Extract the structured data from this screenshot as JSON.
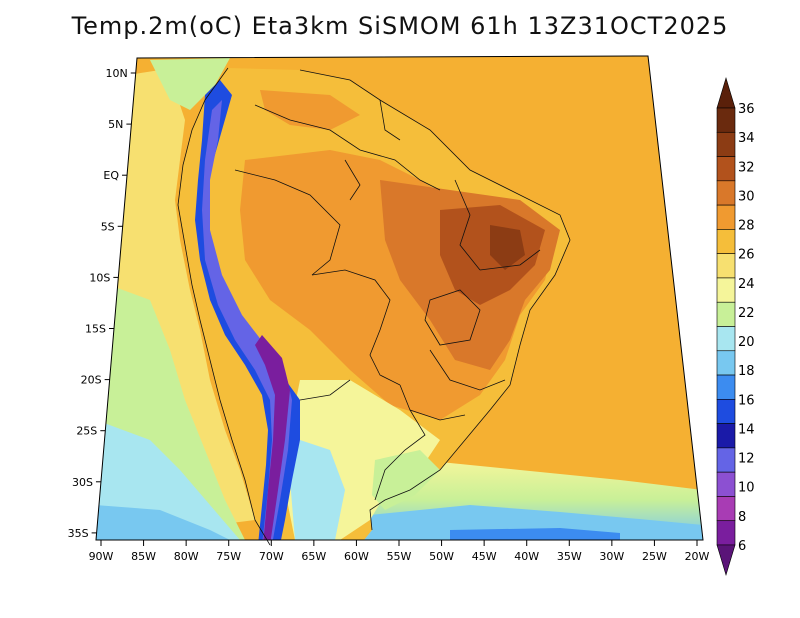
{
  "title": "Temp.2m(oC) Eta3km SiSMOM 61h 13Z31OCT2025",
  "map": {
    "lat_ticks": [
      "10N",
      "5N",
      "EQ",
      "5S",
      "10S",
      "15S",
      "20S",
      "25S",
      "30S",
      "35S"
    ],
    "lon_ticks": [
      "90W",
      "85W",
      "80W",
      "75W",
      "70W",
      "65W",
      "60W",
      "55W",
      "50W",
      "45W",
      "40W",
      "35W",
      "30W",
      "25W",
      "20W"
    ]
  },
  "colorbar": {
    "labels": [
      "36",
      "34",
      "32",
      "30",
      "28",
      "26",
      "24",
      "22",
      "20",
      "18",
      "16",
      "14",
      "12",
      "10",
      "8",
      "6"
    ],
    "colors": [
      "#6a2a0e",
      "#8c3c14",
      "#b2521c",
      "#d9782a",
      "#f09a30",
      "#f5be3a",
      "#f7e070",
      "#f5f59a",
      "#c8f098",
      "#a8e6f0",
      "#78c8f0",
      "#3c8cf0",
      "#1e4ce0",
      "#1a1aa8",
      "#6464e6",
      "#8c50d2",
      "#a83cb4",
      "#7a1e9e"
    ],
    "arrow_top_color": "#5a200a",
    "arrow_bottom_color": "#5a1478"
  },
  "palette": {
    "ocean": "#f5b032",
    "ocean_warm": "#f0a22c",
    "coast_cool": "#f7e070",
    "coast_cold": "#c8f098",
    "cold_1": "#a8e6f0",
    "cold_2": "#78c8f0",
    "cold_3": "#3c8cf0",
    "land_base": "#f5be3a",
    "land_warm": "#f09a30",
    "land_hot": "#d9782a",
    "land_hotter": "#b2521c",
    "land_hottest": "#8c3c14",
    "andes_1": "#7a1e9e",
    "andes_2": "#6464e6",
    "andes_3": "#1e4ce0",
    "south_1": "#f5f59a",
    "south_2": "#c8f098",
    "south_3": "#a8e6f0",
    "south_4": "#78c8f0"
  }
}
